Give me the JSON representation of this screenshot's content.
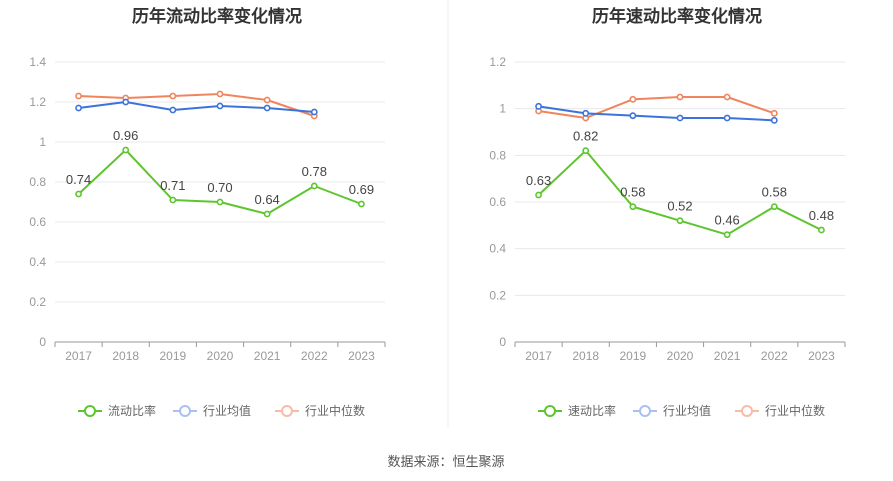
{
  "source": "数据来源：恒生聚源",
  "colors": {
    "main": "#5ec52e",
    "avg": "#3b73db",
    "median": "#f0845c"
  },
  "chart_data": [
    {
      "type": "line",
      "title": "历年流动比率变化情况",
      "x": [
        "2017",
        "2018",
        "2019",
        "2020",
        "2021",
        "2022",
        "2023"
      ],
      "ylim": [
        0,
        1.4
      ],
      "yticks": [
        0,
        0.2,
        0.4,
        0.6,
        0.8,
        1,
        1.2,
        1.4
      ],
      "ytick_labels": [
        "0",
        "0.2",
        "0.4",
        "0.6",
        "0.8",
        "1",
        "1.2",
        "1.4"
      ],
      "legend_position": "bottom",
      "grid": true,
      "series": [
        {
          "name": "流动比率",
          "color": "#5ec52e",
          "values": [
            0.74,
            0.96,
            0.71,
            0.7,
            0.64,
            0.78,
            0.69
          ],
          "labels": [
            "0.74",
            "0.96",
            "0.71",
            "0.70",
            "0.64",
            "0.78",
            "0.69"
          ]
        },
        {
          "name": "行业均值",
          "color": "#3b73db",
          "values": [
            1.17,
            1.2,
            1.16,
            1.18,
            1.17,
            1.15,
            null
          ]
        },
        {
          "name": "行业中位数",
          "color": "#f0845c",
          "values": [
            1.23,
            1.22,
            1.23,
            1.24,
            1.21,
            1.13,
            null
          ]
        }
      ]
    },
    {
      "type": "line",
      "title": "历年速动比率变化情况",
      "x": [
        "2017",
        "2018",
        "2019",
        "2020",
        "2021",
        "2022",
        "2023"
      ],
      "ylim": [
        0,
        1.2
      ],
      "yticks": [
        0,
        0.2,
        0.4,
        0.6,
        0.8,
        1,
        1.2
      ],
      "ytick_labels": [
        "0",
        "0.2",
        "0.4",
        "0.6",
        "0.8",
        "1",
        "1.2"
      ],
      "legend_position": "bottom",
      "grid": true,
      "series": [
        {
          "name": "速动比率",
          "color": "#5ec52e",
          "values": [
            0.63,
            0.82,
            0.58,
            0.52,
            0.46,
            0.58,
            0.48
          ],
          "labels": [
            "0.63",
            "0.82",
            "0.58",
            "0.52",
            "0.46",
            "0.58",
            "0.48"
          ]
        },
        {
          "name": "行业均值",
          "color": "#3b73db",
          "values": [
            1.01,
            0.98,
            0.97,
            0.96,
            0.96,
            0.95,
            null
          ]
        },
        {
          "name": "行业中位数",
          "color": "#f0845c",
          "values": [
            0.99,
            0.96,
            1.04,
            1.05,
            1.05,
            0.98,
            null
          ]
        }
      ]
    }
  ]
}
